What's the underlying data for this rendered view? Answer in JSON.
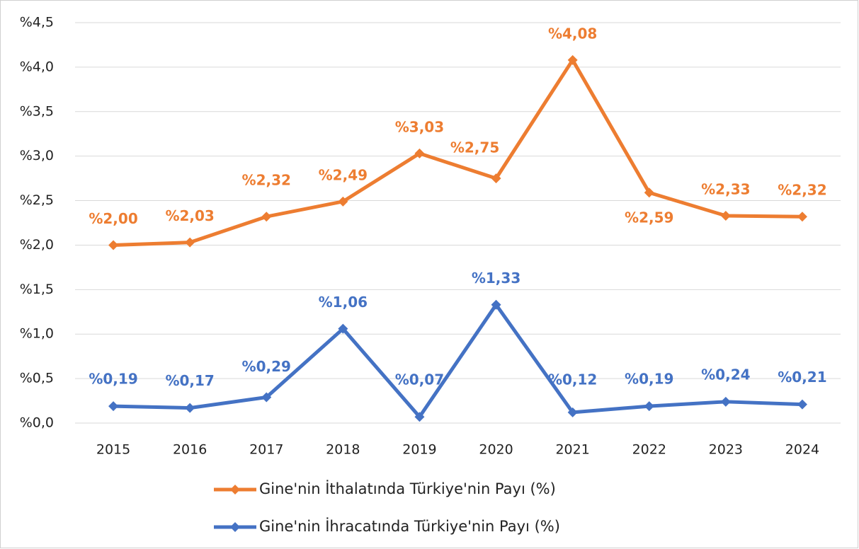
{
  "chart_data": {
    "type": "line",
    "categories": [
      "2015",
      "2016",
      "2017",
      "2018",
      "2019",
      "2020",
      "2021",
      "2022",
      "2023",
      "2024"
    ],
    "series": [
      {
        "name": "Gine'nin İthalatında Türkiye'nin Payı (%)",
        "color": "#ed7d31",
        "values": [
          2.0,
          2.03,
          2.32,
          2.49,
          3.03,
          2.75,
          4.08,
          2.59,
          2.33,
          2.32
        ],
        "value_labels": [
          "%2,00",
          "%2,03",
          "%2,32",
          "%2,49",
          "%3,03",
          "%2,75",
          "%4,08",
          "%2,59",
          "%2,33",
          "%2,32"
        ]
      },
      {
        "name": "Gine'nin İhracatında Türkiye'nin Payı (%)",
        "color": "#4472c4",
        "values": [
          0.19,
          0.17,
          0.29,
          1.06,
          0.07,
          1.33,
          0.12,
          0.19,
          0.24,
          0.21
        ],
        "value_labels": [
          "%0,19",
          "%0,17",
          "%0,29",
          "%1,06",
          "%0,07",
          "%1,33",
          "%0,12",
          "%0,19",
          "%0,24",
          "%0,21"
        ]
      }
    ],
    "ylim": [
      0,
      4.5
    ],
    "yticks": [
      {
        "value": 0,
        "label": "%0,0"
      },
      {
        "value": 0.5,
        "label": "%0,5"
      },
      {
        "value": 1,
        "label": "%1,0"
      },
      {
        "value": 1.5,
        "label": "%1,5"
      },
      {
        "value": 2,
        "label": "%2,0"
      },
      {
        "value": 2.5,
        "label": "%2,5"
      },
      {
        "value": 3,
        "label": "%3,0"
      },
      {
        "value": 3.5,
        "label": "%3,5"
      },
      {
        "value": 4,
        "label": "%4,0"
      },
      {
        "value": 4.5,
        "label": "%4,5"
      }
    ],
    "grid": true
  }
}
